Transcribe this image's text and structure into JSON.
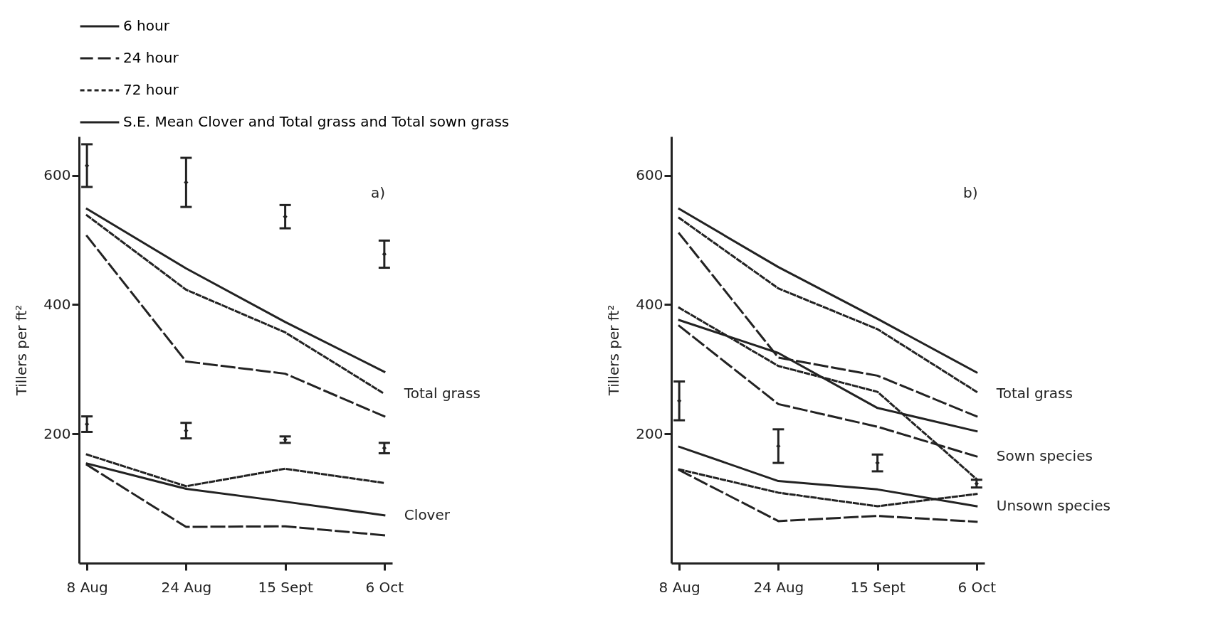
{
  "chart_data": [
    {
      "type": "line",
      "categories": [
        "8 Aug",
        "24 Aug",
        "15 Sept",
        "6 Oct"
      ],
      "ylabel": "Tillers per ft²",
      "ylim": [
        0,
        660
      ],
      "yticks": [
        200,
        400,
        600
      ],
      "grid": false,
      "legend": "top",
      "annotations": [
        "a)",
        {
          "text": "Total grass",
          "x": "6 Oct",
          "y": 262
        },
        {
          "text": "Clover",
          "x": "6 Oct",
          "y": 74
        }
      ],
      "series": [
        {
          "name": "6 hour",
          "color": "#222222",
          "line_style": "solid",
          "values": [
            548,
            456,
            373,
            296
          ]
        },
        {
          "name": "24 hour",
          "color": "#222222",
          "line_style": "dashed",
          "values": [
            506,
            312,
            293,
            227
          ]
        },
        {
          "name": "72 hour",
          "color": "#222222",
          "line_style": "dotted",
          "values": [
            538,
            423,
            357,
            262
          ]
        },
        {
          "color": "#222222",
          "line_style": "solid",
          "values": [
            154,
            115,
            95,
            74
          ]
        },
        {
          "color": "#222222",
          "line_style": "dashed",
          "values": [
            152,
            56,
            57,
            43
          ]
        },
        {
          "color": "#222222",
          "line_style": "dotted",
          "values": [
            168,
            119,
            146,
            124
          ]
        },
        {
          "name": "S.E. Mean  Clover and Total grass and Total sown grass",
          "type": "scatter",
          "color": "#222222",
          "values": [
            615,
            589,
            536,
            478
          ],
          "errors": [
            33,
            38,
            18,
            21
          ]
        },
        {
          "type": "scatter",
          "color": "#222222",
          "values": [
            215,
            205,
            191,
            178
          ],
          "errors": [
            12,
            12,
            5,
            8
          ]
        }
      ]
    },
    {
      "type": "line",
      "categories": [
        "8 Aug",
        "24 Aug",
        "15 Sept",
        "6 Oct"
      ],
      "ylabel": "Tillers per ft²",
      "ylim": [
        0,
        660
      ],
      "yticks": [
        200,
        400,
        600
      ],
      "grid": false,
      "annotations": [
        "b)",
        {
          "text": "Total grass",
          "x": "6 Oct",
          "y": 262
        },
        {
          "text": "Sown species",
          "x": "6 Oct",
          "y": 165
        },
        {
          "text": "Unsown species",
          "x": "6 Oct",
          "y": 88
        }
      ],
      "series": [
        {
          "color": "#222222",
          "line_style": "solid",
          "values": [
            548,
            458,
            378,
            295
          ]
        },
        {
          "color": "#222222",
          "line_style": "dashed",
          "values": [
            510,
            318,
            290,
            227
          ]
        },
        {
          "color": "#222222",
          "line_style": "dotted",
          "values": [
            534,
            425,
            362,
            265
          ]
        },
        {
          "color": "#222222",
          "line_style": "solid",
          "values": [
            376,
            325,
            240,
            204
          ]
        },
        {
          "color": "#222222",
          "line_style": "dashed",
          "values": [
            367,
            246,
            211,
            165
          ]
        },
        {
          "color": "#222222",
          "line_style": "dotted",
          "values": [
            395,
            305,
            265,
            130
          ]
        },
        {
          "color": "#222222",
          "line_style": "solid",
          "values": [
            180,
            127,
            114,
            88
          ]
        },
        {
          "color": "#222222",
          "line_style": "dashed",
          "values": [
            144,
            65,
            73,
            64
          ]
        },
        {
          "color": "#222222",
          "line_style": "dotted",
          "values": [
            145,
            109,
            88,
            107
          ]
        },
        {
          "type": "scatter",
          "color": "#222222",
          "values": [
            251,
            181,
            155,
            123
          ],
          "errors": [
            30,
            26,
            13,
            6
          ]
        }
      ]
    }
  ]
}
